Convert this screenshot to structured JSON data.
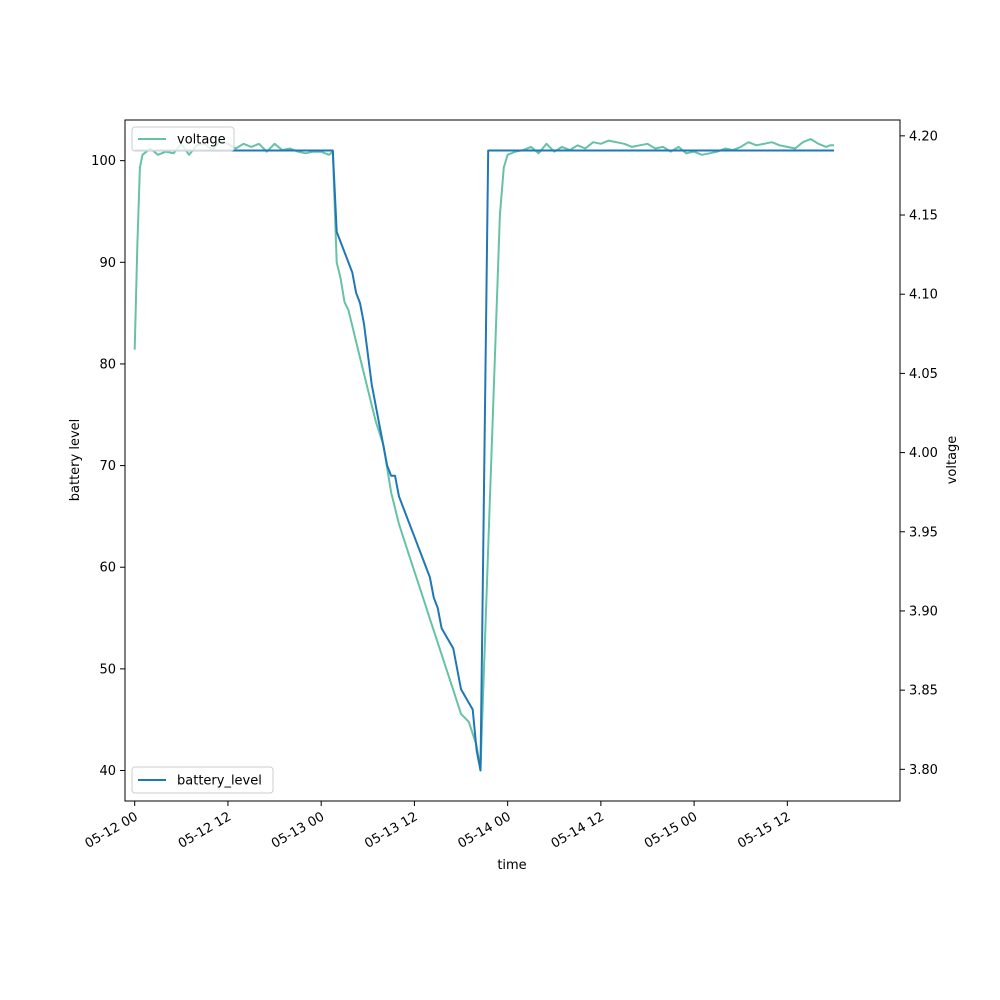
{
  "chart_data": {
    "type": "line",
    "xlabel": "time",
    "ylabel_left": "battery level",
    "ylabel_right": "voltage",
    "x_range": [
      "2024-05-11T22:45",
      "2024-05-16T02:30"
    ],
    "ylim_left": [
      37,
      104
    ],
    "ylim_right": [
      3.78,
      4.21
    ],
    "x_ticks": [
      {
        "t": "2024-05-12T00:00",
        "label": "05-12 00"
      },
      {
        "t": "2024-05-12T12:00",
        "label": "05-12 12"
      },
      {
        "t": "2024-05-13T00:00",
        "label": "05-13 00"
      },
      {
        "t": "2024-05-13T12:00",
        "label": "05-13 12"
      },
      {
        "t": "2024-05-14T00:00",
        "label": "05-14 00"
      },
      {
        "t": "2024-05-14T12:00",
        "label": "05-14 12"
      },
      {
        "t": "2024-05-15T00:00",
        "label": "05-15 00"
      },
      {
        "t": "2024-05-15T12:00",
        "label": "05-15 12"
      }
    ],
    "y_ticks_left": [
      40,
      50,
      60,
      70,
      80,
      90,
      100
    ],
    "y_ticks_right": [
      {
        "v": 3.8,
        "label": "3.80"
      },
      {
        "v": 3.85,
        "label": "3.85"
      },
      {
        "v": 3.9,
        "label": "3.90"
      },
      {
        "v": 3.95,
        "label": "3.95"
      },
      {
        "v": 4.0,
        "label": "4.00"
      },
      {
        "v": 4.05,
        "label": "4.05"
      },
      {
        "v": 4.1,
        "label": "4.10"
      },
      {
        "v": 4.15,
        "label": "4.15"
      },
      {
        "v": 4.2,
        "label": "4.20"
      }
    ],
    "grid": false,
    "series": [
      {
        "name": "battery_level",
        "axis": "left",
        "color": "#1f77b4",
        "legend_position": "lower-left",
        "points": [
          [
            "2024-05-12T00:00",
            101
          ],
          [
            "2024-05-13T01:30",
            101
          ],
          [
            "2024-05-13T02:00",
            93
          ],
          [
            "2024-05-13T03:00",
            91
          ],
          [
            "2024-05-13T04:00",
            89
          ],
          [
            "2024-05-13T04:30",
            87
          ],
          [
            "2024-05-13T05:00",
            86
          ],
          [
            "2024-05-13T05:30",
            84
          ],
          [
            "2024-05-13T06:00",
            81
          ],
          [
            "2024-05-13T06:30",
            78
          ],
          [
            "2024-05-13T07:30",
            74
          ],
          [
            "2024-05-13T08:30",
            70
          ],
          [
            "2024-05-13T09:00",
            69
          ],
          [
            "2024-05-13T09:30",
            69
          ],
          [
            "2024-05-13T10:00",
            67
          ],
          [
            "2024-05-13T11:00",
            65
          ],
          [
            "2024-05-13T12:00",
            63
          ],
          [
            "2024-05-13T13:00",
            61
          ],
          [
            "2024-05-13T14:00",
            59
          ],
          [
            "2024-05-13T14:30",
            57
          ],
          [
            "2024-05-13T15:00",
            56
          ],
          [
            "2024-05-13T15:30",
            54
          ],
          [
            "2024-05-13T17:00",
            52
          ],
          [
            "2024-05-13T18:00",
            48
          ],
          [
            "2024-05-13T19:30",
            46
          ],
          [
            "2024-05-13T20:00",
            42
          ],
          [
            "2024-05-13T20:30",
            40
          ],
          [
            "2024-05-13T21:30",
            101
          ],
          [
            "2024-05-15T16:00",
            101
          ],
          [
            "2024-05-15T18:00",
            101
          ]
        ]
      },
      {
        "name": "voltage",
        "axis": "right",
        "color": "#66c2a5",
        "legend_position": "upper-left",
        "points": [
          [
            "2024-05-12T00:00",
            4.065
          ],
          [
            "2024-05-12T00:20",
            4.13
          ],
          [
            "2024-05-12T00:40",
            4.18
          ],
          [
            "2024-05-12T01:00",
            4.188
          ],
          [
            "2024-05-12T01:30",
            4.19
          ],
          [
            "2024-05-12T02:00",
            4.192
          ],
          [
            "2024-05-12T03:00",
            4.188
          ],
          [
            "2024-05-12T04:00",
            4.19
          ],
          [
            "2024-05-12T05:00",
            4.189
          ],
          [
            "2024-05-12T06:00",
            4.195
          ],
          [
            "2024-05-12T07:00",
            4.188
          ],
          [
            "2024-05-12T08:00",
            4.194
          ],
          [
            "2024-05-12T09:00",
            4.195
          ],
          [
            "2024-05-12T10:00",
            4.191
          ],
          [
            "2024-05-12T11:00",
            4.197
          ],
          [
            "2024-05-12T12:00",
            4.195
          ],
          [
            "2024-05-12T13:00",
            4.192
          ],
          [
            "2024-05-12T14:00",
            4.195
          ],
          [
            "2024-05-12T15:00",
            4.193
          ],
          [
            "2024-05-12T16:00",
            4.195
          ],
          [
            "2024-05-12T17:00",
            4.19
          ],
          [
            "2024-05-12T18:00",
            4.195
          ],
          [
            "2024-05-12T19:00",
            4.191
          ],
          [
            "2024-05-12T20:00",
            4.192
          ],
          [
            "2024-05-12T21:00",
            4.19
          ],
          [
            "2024-05-12T22:00",
            4.189
          ],
          [
            "2024-05-12T23:00",
            4.19
          ],
          [
            "2024-05-13T00:00",
            4.19
          ],
          [
            "2024-05-13T01:00",
            4.188
          ],
          [
            "2024-05-13T01:30",
            4.19
          ],
          [
            "2024-05-13T02:00",
            4.12
          ],
          [
            "2024-05-13T02:30",
            4.11
          ],
          [
            "2024-05-13T03:00",
            4.095
          ],
          [
            "2024-05-13T03:30",
            4.09
          ],
          [
            "2024-05-13T04:00",
            4.08
          ],
          [
            "2024-05-13T04:30",
            4.07
          ],
          [
            "2024-05-13T05:00",
            4.06
          ],
          [
            "2024-05-13T05:30",
            4.05
          ],
          [
            "2024-05-13T06:00",
            4.04
          ],
          [
            "2024-05-13T07:00",
            4.02
          ],
          [
            "2024-05-13T08:00",
            4.005
          ],
          [
            "2024-05-13T08:30",
            3.99
          ],
          [
            "2024-05-13T09:00",
            3.975
          ],
          [
            "2024-05-13T09:30",
            3.965
          ],
          [
            "2024-05-13T10:00",
            3.955
          ],
          [
            "2024-05-13T11:00",
            3.94
          ],
          [
            "2024-05-13T12:00",
            3.925
          ],
          [
            "2024-05-13T13:00",
            3.91
          ],
          [
            "2024-05-13T14:00",
            3.895
          ],
          [
            "2024-05-13T15:00",
            3.88
          ],
          [
            "2024-05-13T16:00",
            3.865
          ],
          [
            "2024-05-13T17:00",
            3.85
          ],
          [
            "2024-05-13T18:00",
            3.835
          ],
          [
            "2024-05-13T19:00",
            3.83
          ],
          [
            "2024-05-13T20:00",
            3.815
          ],
          [
            "2024-05-13T20:30",
            3.8
          ],
          [
            "2024-05-13T21:30",
            3.94
          ],
          [
            "2024-05-13T22:30",
            4.08
          ],
          [
            "2024-05-13T23:00",
            4.15
          ],
          [
            "2024-05-13T23:30",
            4.18
          ],
          [
            "2024-05-14T00:00",
            4.188
          ],
          [
            "2024-05-14T01:00",
            4.19
          ],
          [
            "2024-05-14T02:00",
            4.191
          ],
          [
            "2024-05-14T03:00",
            4.193
          ],
          [
            "2024-05-14T04:00",
            4.189
          ],
          [
            "2024-05-14T05:00",
            4.195
          ],
          [
            "2024-05-14T06:00",
            4.19
          ],
          [
            "2024-05-14T07:00",
            4.193
          ],
          [
            "2024-05-14T08:00",
            4.191
          ],
          [
            "2024-05-14T09:00",
            4.194
          ],
          [
            "2024-05-14T10:00",
            4.192
          ],
          [
            "2024-05-14T11:00",
            4.196
          ],
          [
            "2024-05-14T12:00",
            4.195
          ],
          [
            "2024-05-14T13:00",
            4.197
          ],
          [
            "2024-05-14T14:00",
            4.196
          ],
          [
            "2024-05-14T15:00",
            4.195
          ],
          [
            "2024-05-14T16:00",
            4.193
          ],
          [
            "2024-05-14T17:00",
            4.194
          ],
          [
            "2024-05-14T18:00",
            4.195
          ],
          [
            "2024-05-14T19:00",
            4.192
          ],
          [
            "2024-05-14T20:00",
            4.193
          ],
          [
            "2024-05-14T21:00",
            4.19
          ],
          [
            "2024-05-14T22:00",
            4.193
          ],
          [
            "2024-05-14T23:00",
            4.189
          ],
          [
            "2024-05-15T00:00",
            4.19
          ],
          [
            "2024-05-15T01:00",
            4.188
          ],
          [
            "2024-05-15T02:00",
            4.189
          ],
          [
            "2024-05-15T03:00",
            4.19
          ],
          [
            "2024-05-15T04:00",
            4.192
          ],
          [
            "2024-05-15T05:00",
            4.191
          ],
          [
            "2024-05-15T06:00",
            4.193
          ],
          [
            "2024-05-15T07:00",
            4.196
          ],
          [
            "2024-05-15T08:00",
            4.194
          ],
          [
            "2024-05-15T09:00",
            4.195
          ],
          [
            "2024-05-15T10:00",
            4.196
          ],
          [
            "2024-05-15T11:00",
            4.194
          ],
          [
            "2024-05-15T12:00",
            4.193
          ],
          [
            "2024-05-15T13:00",
            4.192
          ],
          [
            "2024-05-15T14:00",
            4.196
          ],
          [
            "2024-05-15T15:00",
            4.198
          ],
          [
            "2024-05-15T16:00",
            4.195
          ],
          [
            "2024-05-15T17:00",
            4.193
          ],
          [
            "2024-05-15T17:30",
            4.194
          ],
          [
            "2024-05-15T18:00",
            4.194
          ]
        ]
      }
    ]
  }
}
